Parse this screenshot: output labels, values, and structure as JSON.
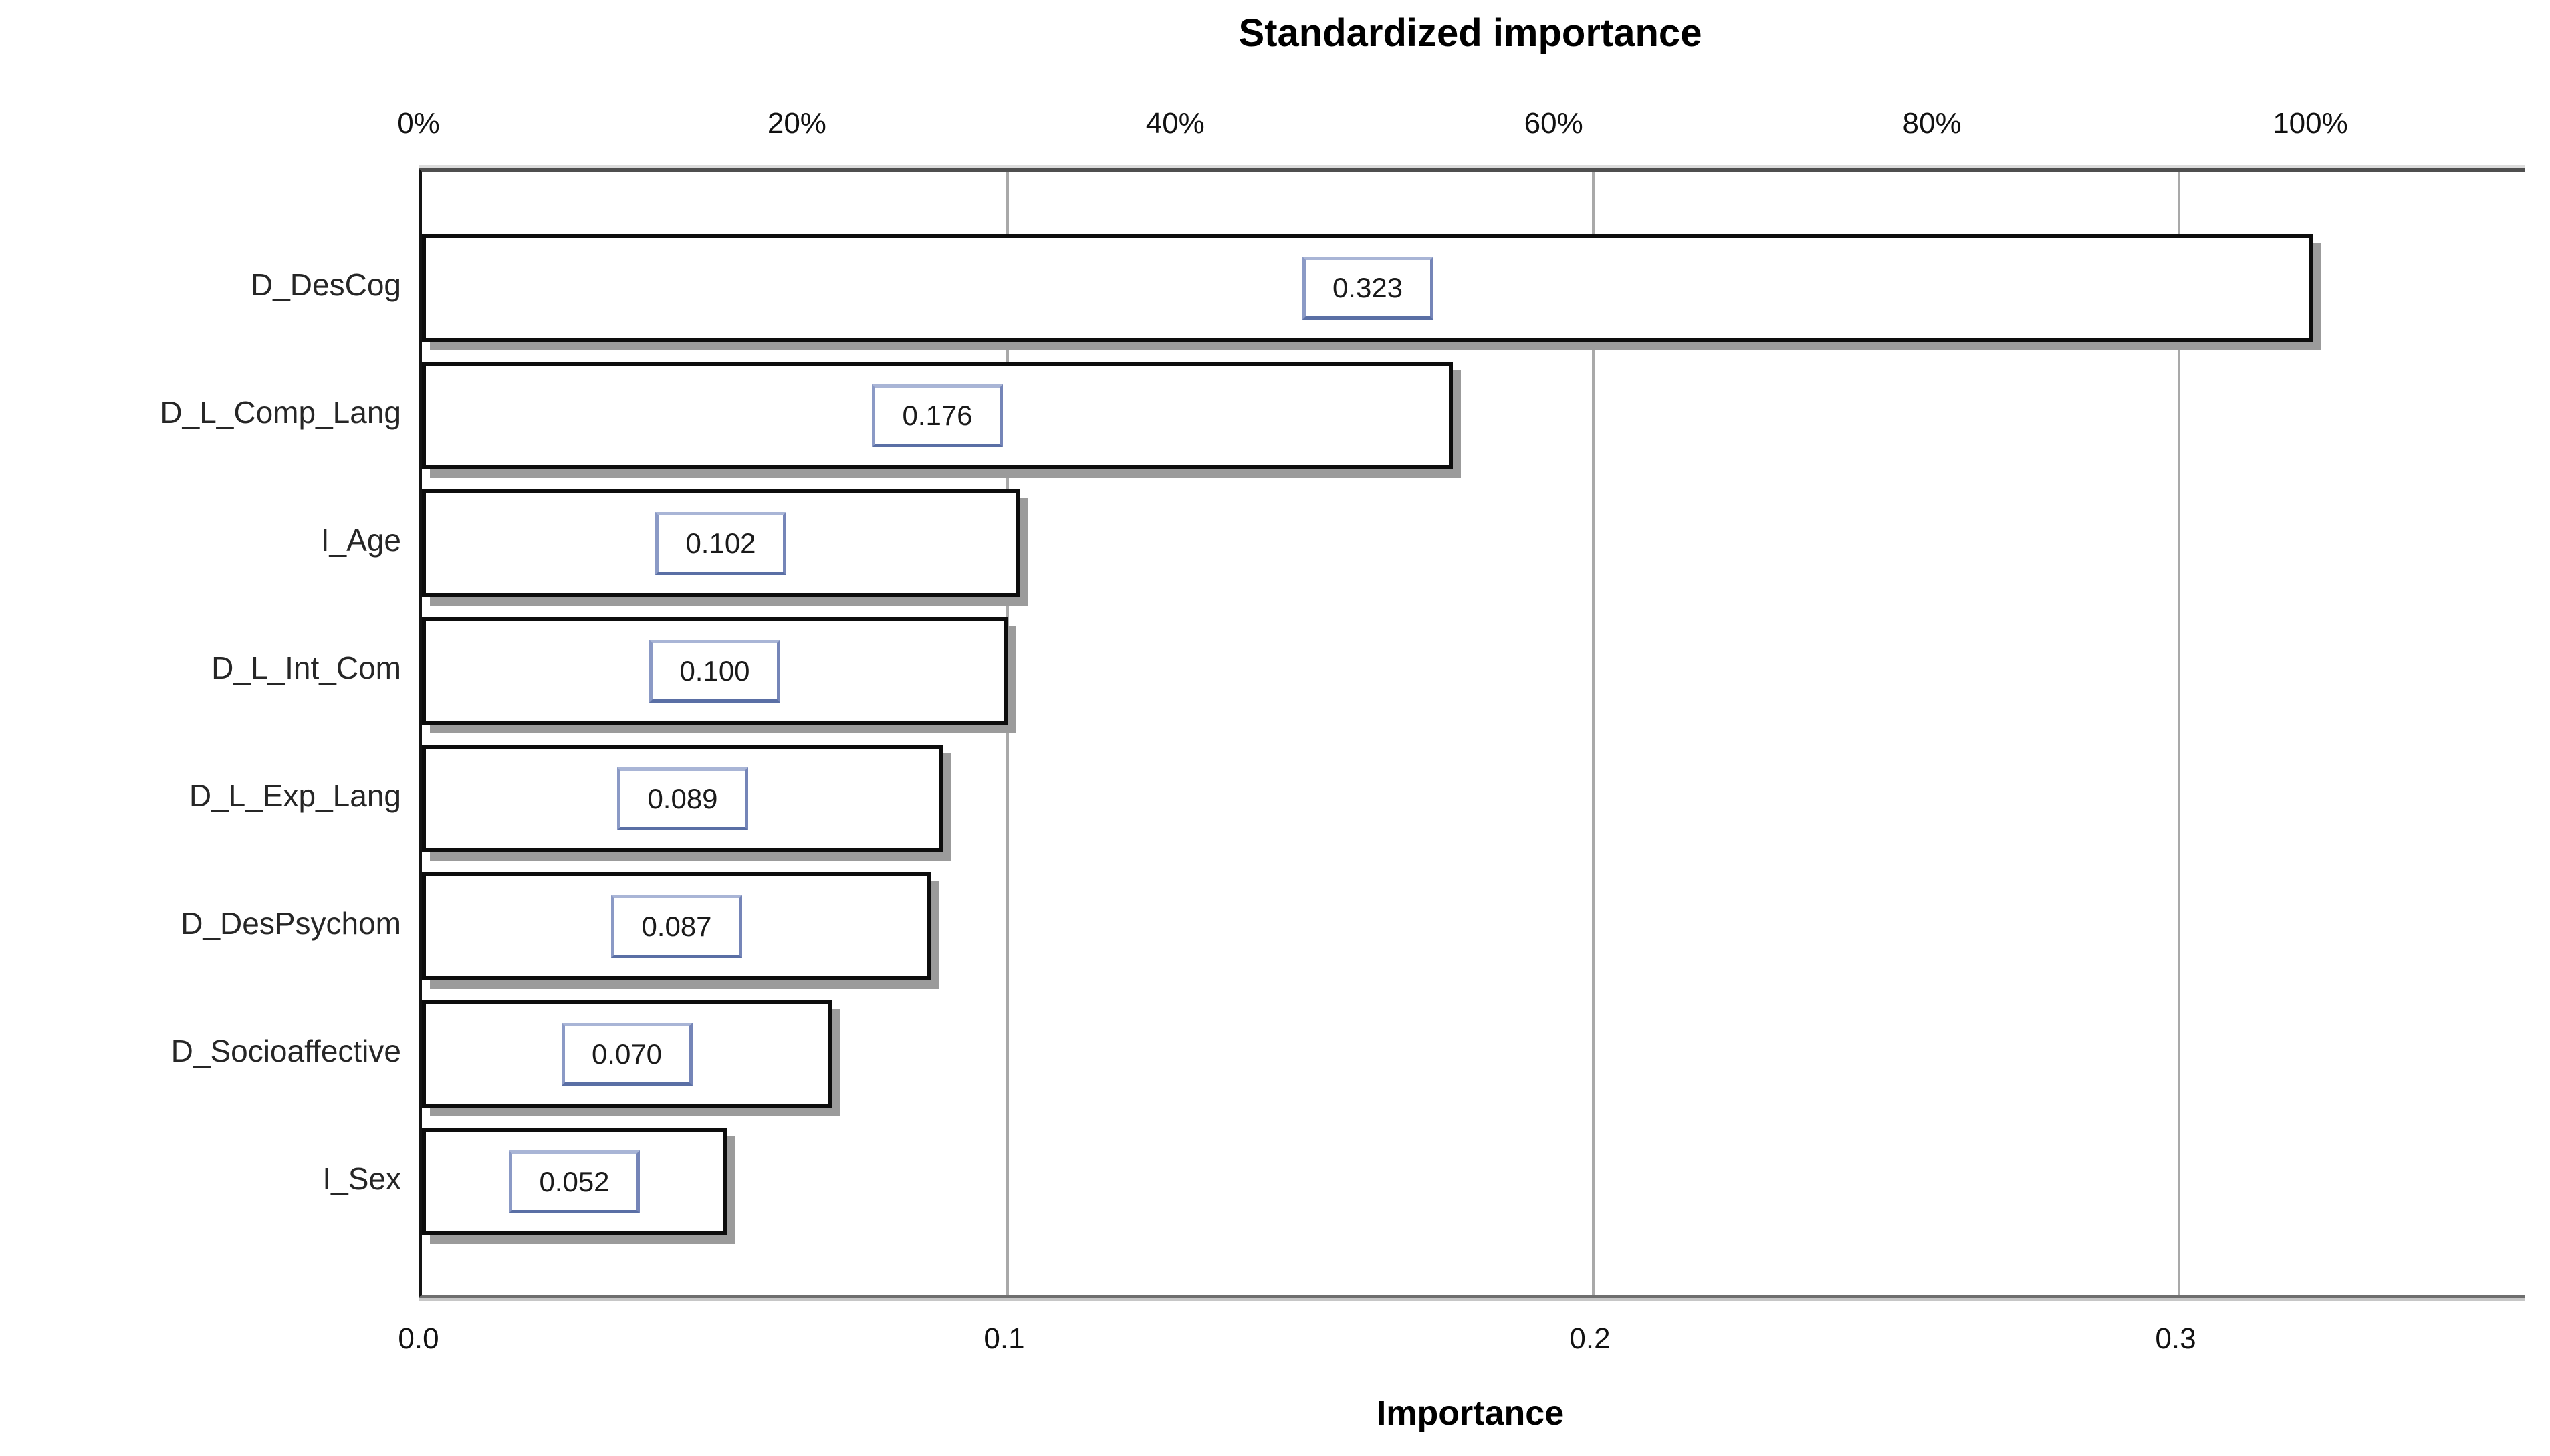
{
  "chart_data": {
    "type": "bar",
    "orientation": "horizontal",
    "title": "Standardized importance",
    "xlabel": "Importance",
    "categories": [
      "D_DesCog",
      "D_L_Comp_Lang",
      "I_Age",
      "D_L_Int_Com",
      "D_L_Exp_Lang",
      "D_DesPsychom",
      "D_Socioaffective",
      "I_Sex"
    ],
    "values": [
      0.323,
      0.176,
      0.102,
      0.1,
      0.089,
      0.087,
      0.07,
      0.052
    ],
    "value_labels": [
      "0.323",
      "0.176",
      "0.102",
      "0.100",
      "0.089",
      "0.087",
      "0.070",
      "0.052"
    ],
    "top_axis": {
      "ticks": [
        "0%",
        "20%",
        "40%",
        "60%",
        "80%",
        "100%"
      ],
      "tick_percent_values": [
        0,
        20,
        40,
        60,
        80,
        100
      ],
      "note": "standardized scale, 100% corresponds to importance 0.323"
    },
    "bottom_axis": {
      "ticks": [
        "0.0",
        "0.1",
        "0.2",
        "0.3"
      ],
      "tick_values": [
        0.0,
        0.1,
        0.2,
        0.3
      ]
    },
    "xlim": [
      0,
      0.359
    ],
    "grid": {
      "vertical_lines_at": [
        0.1,
        0.2,
        0.3
      ]
    },
    "legend": "none",
    "colors": {
      "background": "#ffffff",
      "bar_fill": "#ffffff",
      "bar_border": "#0d0d0d",
      "bar_shadow": "#9b9b9b",
      "value_box_border": "#8b9ac6",
      "value_box_fill": "#ffffff",
      "gridline": "#a9a9a9",
      "frame_dark": "#4f4f4f",
      "frame_light": "#dcdcdc",
      "text": "#1a1a1a"
    }
  }
}
